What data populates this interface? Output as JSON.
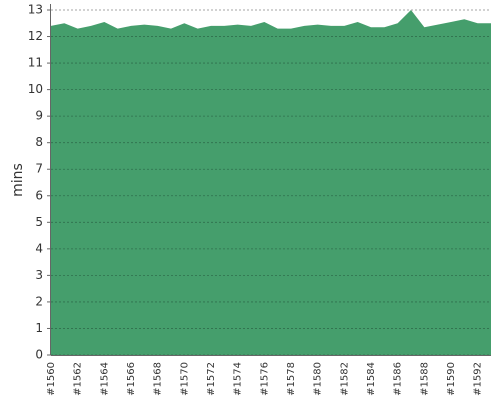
{
  "chart_data": {
    "type": "area",
    "y_label": "mins",
    "color": "#459e6c",
    "grid": true,
    "categories": [
      "#1560",
      null,
      "#1562",
      null,
      "#1564",
      null,
      "#1566",
      null,
      "#1568",
      null,
      "#1570",
      null,
      "#1572",
      null,
      "#1574",
      null,
      "#1576",
      null,
      "#1578",
      null,
      "#1580",
      null,
      "#1582",
      null,
      "#1584",
      null,
      "#1586",
      null,
      "#1588",
      null,
      "#1590",
      null,
      "#1592",
      null
    ],
    "values": [
      12.4,
      12.5,
      12.3,
      12.4,
      12.55,
      12.3,
      12.4,
      12.45,
      12.4,
      12.3,
      12.5,
      12.3,
      12.4,
      12.4,
      12.45,
      12.4,
      12.55,
      12.3,
      12.3,
      12.4,
      12.45,
      12.4,
      12.4,
      12.55,
      12.35,
      12.35,
      12.5,
      13.0,
      12.35,
      12.45,
      12.55,
      12.65,
      12.5,
      12.5
    ],
    "ylim": [
      0,
      13
    ],
    "yticks": [
      0,
      1,
      2,
      3,
      4,
      5,
      6,
      7,
      8,
      9,
      10,
      11,
      12,
      13
    ]
  }
}
